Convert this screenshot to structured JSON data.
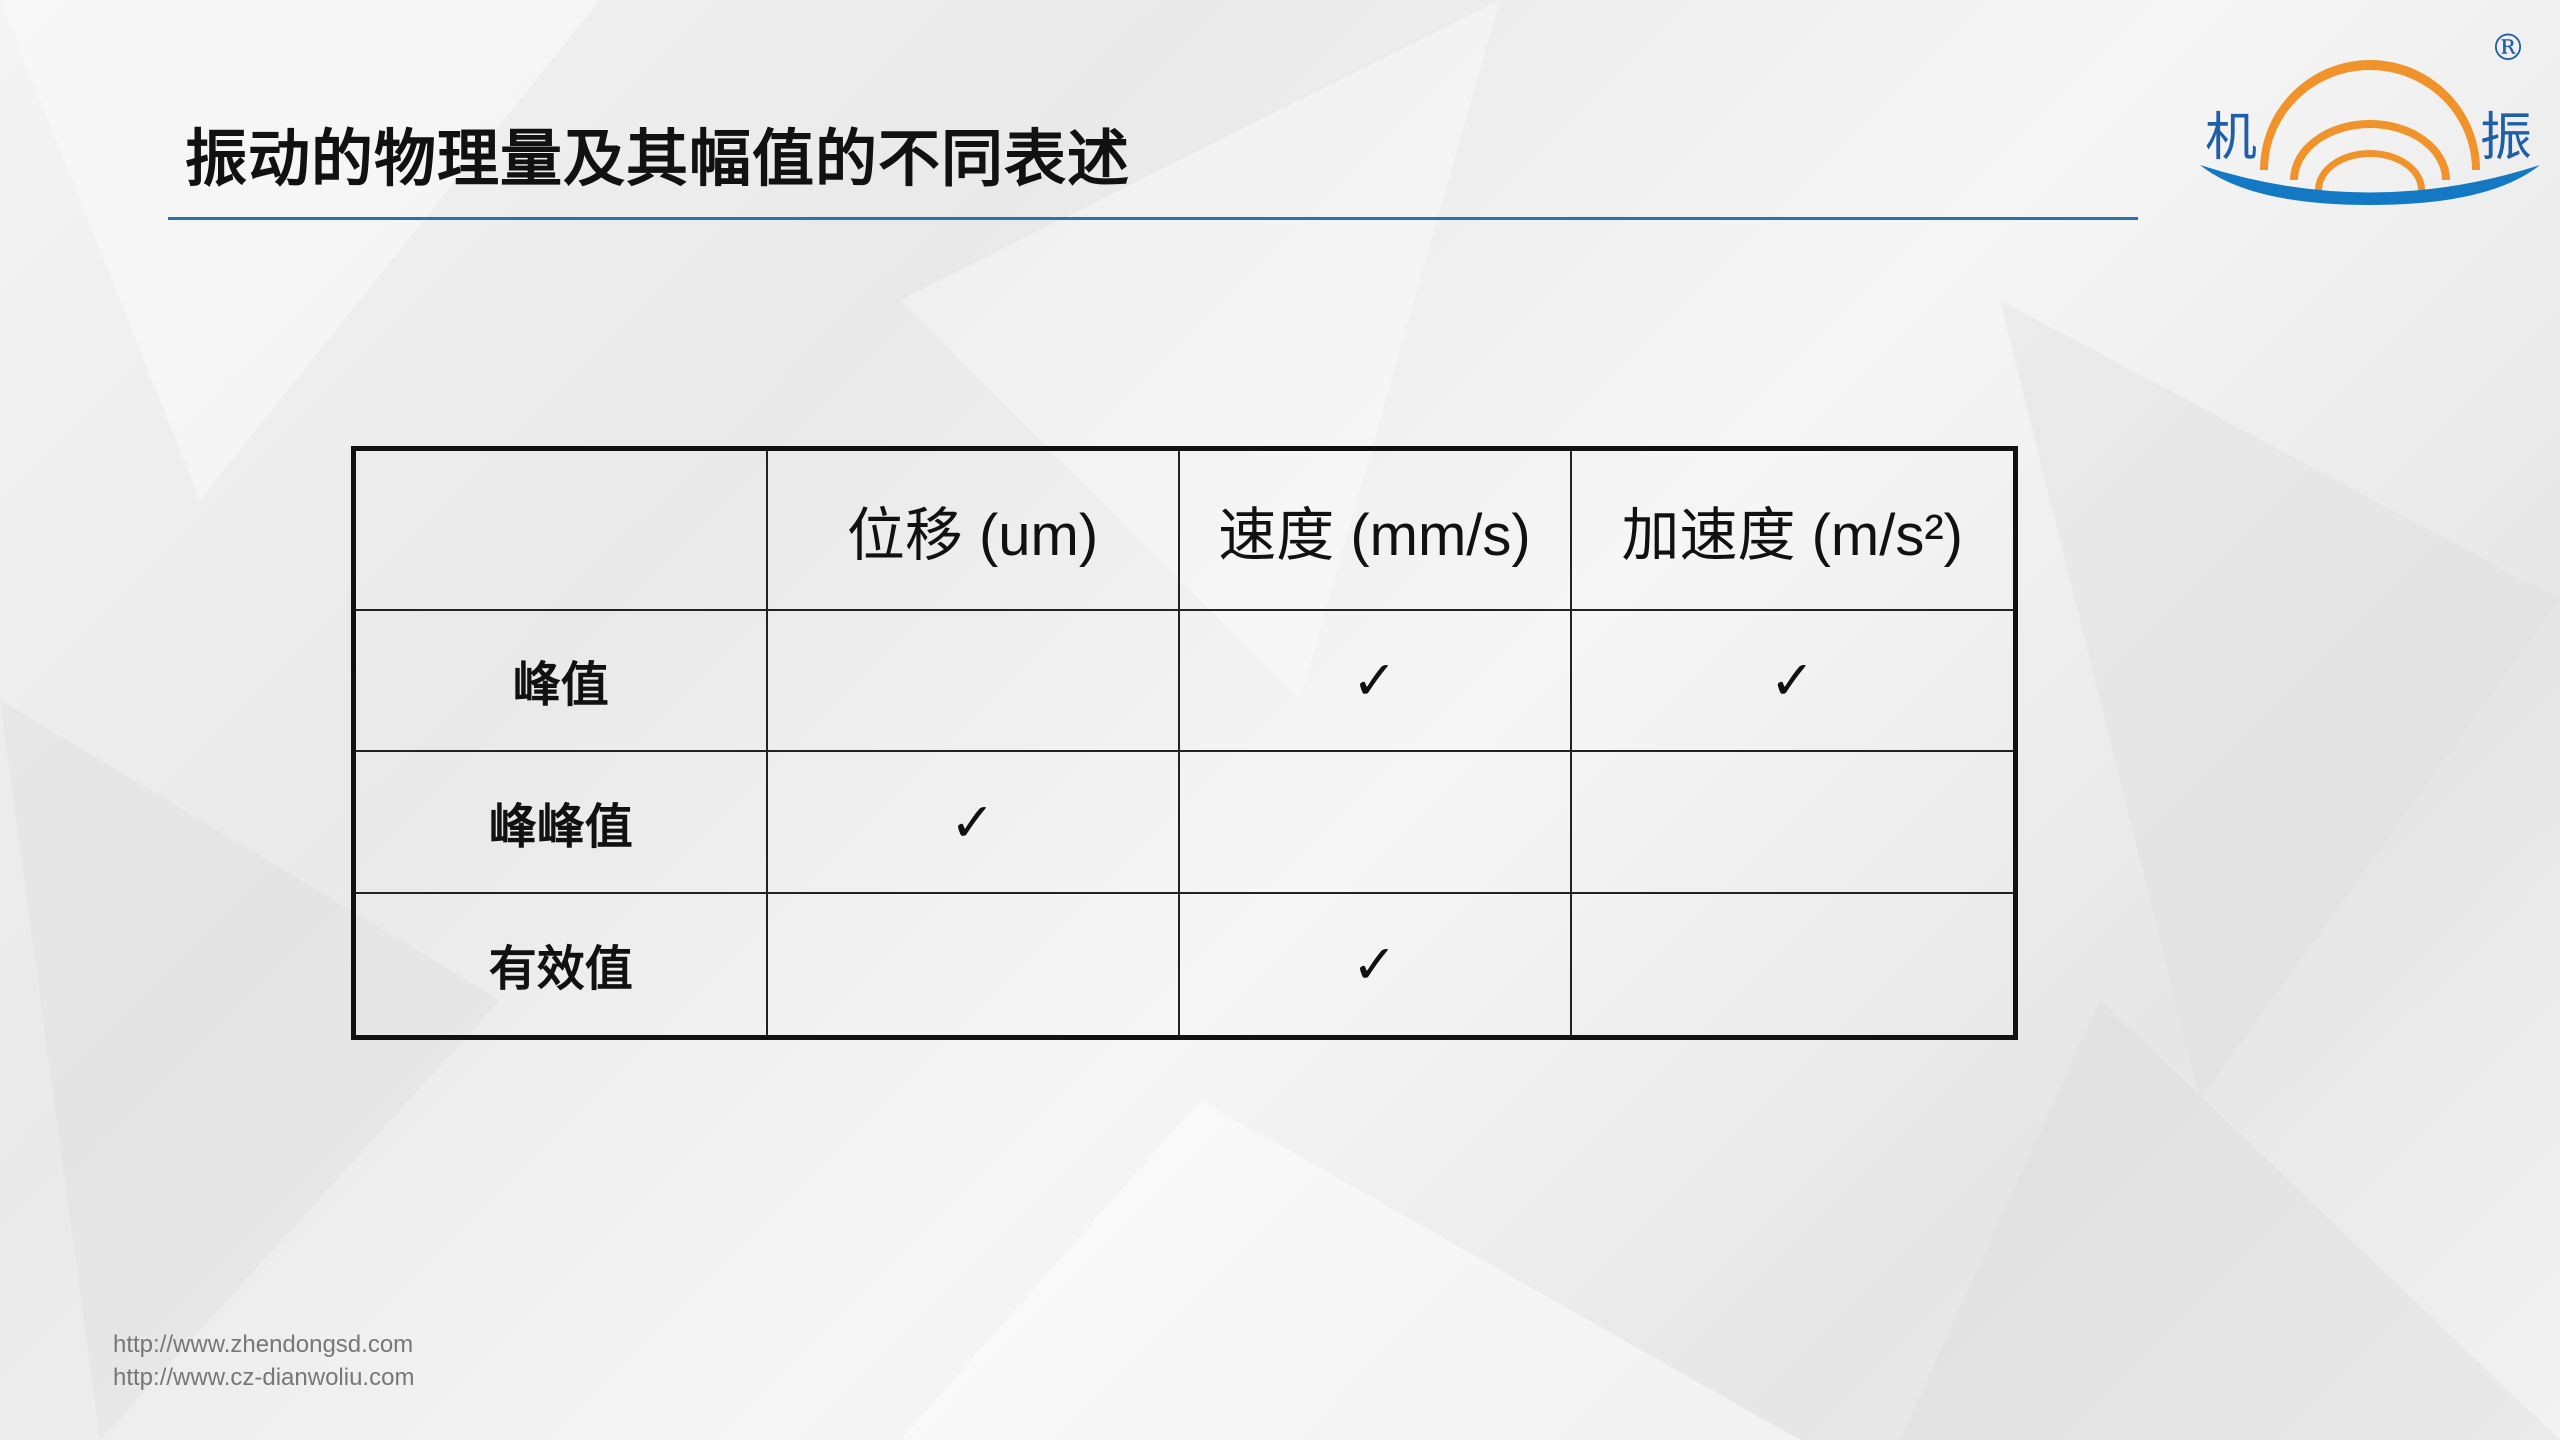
{
  "title": "振动的物理量及其幅值的不同表述",
  "logo": {
    "left_char": "机",
    "right_char": "振",
    "registered": "®",
    "colors": {
      "orange": "#f0932b",
      "blue": "#1479c4"
    }
  },
  "table": {
    "headers": [
      "",
      "位移 (um)",
      "速度 (mm/s)",
      "加速度 (m/s²)"
    ],
    "rows": [
      {
        "label": "峰值",
        "cells": [
          "",
          "✓",
          "✓"
        ]
      },
      {
        "label": "峰峰值",
        "cells": [
          "✓",
          "",
          ""
        ]
      },
      {
        "label": "有效值",
        "cells": [
          "",
          "✓",
          ""
        ]
      }
    ]
  },
  "footer": [
    "http://www.zhendongsd.com",
    "http://www.cz-dianwoliu.com"
  ],
  "colors": {
    "rule": "#2e6fb3"
  }
}
